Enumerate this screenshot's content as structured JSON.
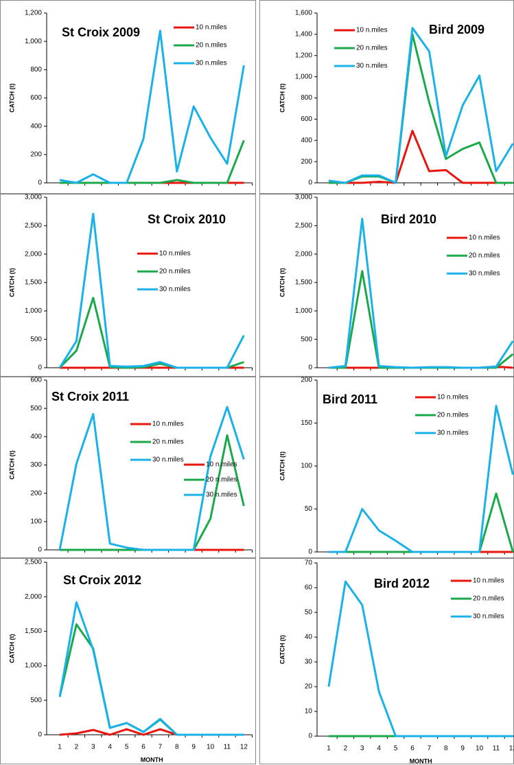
{
  "chart_data": [
    {
      "type": "line",
      "title": "St Croix 2009",
      "ylabel": "CATCH (t)",
      "categories": [
        null,
        null,
        null,
        null,
        null,
        null,
        null,
        null,
        null,
        null,
        null,
        null
      ],
      "ylim": [
        0,
        1200
      ],
      "yticks": [
        0,
        200,
        400,
        600,
        800,
        {
          "value": 1000,
          "label": "1,000"
        },
        {
          "value": 1200,
          "label": "1,200"
        }
      ],
      "series": [
        {
          "name": "10 n.miles",
          "color": "#e8150e",
          "values": [
            0,
            0,
            0,
            0,
            0,
            0,
            0,
            0,
            0,
            0,
            0,
            0
          ]
        },
        {
          "name": "20 n.miles",
          "color": "#1aa84a",
          "values": [
            0,
            0,
            0,
            0,
            0,
            0,
            0,
            20,
            0,
            0,
            0,
            300
          ]
        },
        {
          "name": "30 n.miles",
          "color": "#1ab0e8",
          "values": [
            20,
            0,
            60,
            0,
            0,
            310,
            1075,
            80,
            540,
            320,
            135,
            830
          ]
        }
      ]
    },
    {
      "type": "line",
      "title": "Bird 2009",
      "ylabel": "CATCH (t)",
      "categories": [
        null,
        null,
        null,
        null,
        null,
        null,
        null,
        null,
        null,
        null,
        null,
        null
      ],
      "ylim": [
        0,
        1600
      ],
      "yticks": [
        0,
        200,
        400,
        600,
        800,
        {
          "value": 1000,
          "label": "1,000"
        },
        {
          "value": 1200,
          "label": "1,200"
        },
        {
          "value": 1400,
          "label": "1,400"
        },
        {
          "value": 1600,
          "label": "1,600"
        }
      ],
      "series": [
        {
          "name": "10 n.miles",
          "color": "#e8150e",
          "values": [
            0,
            0,
            0,
            10,
            0,
            490,
            110,
            120,
            0,
            0,
            0,
            0
          ]
        },
        {
          "name": "20 n.miles",
          "color": "#1aa84a",
          "values": [
            0,
            0,
            60,
            60,
            0,
            1400,
            760,
            225,
            320,
            380,
            0,
            0
          ]
        },
        {
          "name": "30 n.miles",
          "color": "#1ab0e8",
          "values": [
            20,
            0,
            70,
            70,
            0,
            1460,
            1240,
            250,
            730,
            1010,
            110,
            370
          ]
        }
      ]
    },
    {
      "type": "line",
      "title": "St Croix 2010",
      "ylabel": "CATCH (t)",
      "categories": [
        null,
        null,
        null,
        null,
        null,
        null,
        null,
        null,
        null,
        null,
        null,
        null
      ],
      "ylim": [
        0,
        3000
      ],
      "yticks": [
        0,
        500,
        {
          "value": 1000,
          "label": "1,000"
        },
        {
          "value": 1500,
          "label": "1,500"
        },
        {
          "value": 2000,
          "label": "2,000"
        },
        {
          "value": 2500,
          "label": "2,500"
        },
        {
          "value": 3000,
          "label": "3,000"
        }
      ],
      "series": [
        {
          "name": "10 n.miles",
          "color": "#e8150e",
          "values": [
            0,
            0,
            0,
            0,
            0,
            0,
            0,
            0,
            0,
            0,
            0,
            0
          ]
        },
        {
          "name": "20 n.miles",
          "color": "#1aa84a",
          "values": [
            0,
            300,
            1230,
            10,
            0,
            10,
            70,
            0,
            0,
            0,
            0,
            100
          ]
        },
        {
          "name": "30 n.miles",
          "color": "#1ab0e8",
          "values": [
            0,
            470,
            2710,
            30,
            20,
            30,
            100,
            0,
            0,
            0,
            0,
            570
          ]
        }
      ]
    },
    {
      "type": "line",
      "title": "Bird 2010",
      "ylabel": "CATCH (t)",
      "categories": [
        null,
        null,
        null,
        null,
        null,
        null,
        null,
        null,
        null,
        null,
        null,
        null
      ],
      "ylim": [
        0,
        3000
      ],
      "yticks": [
        0,
        500,
        {
          "value": 1000,
          "label": "1,000"
        },
        {
          "value": 1500,
          "label": "1,500"
        },
        {
          "value": 2000,
          "label": "2,000"
        },
        {
          "value": 2500,
          "label": "2,500"
        },
        {
          "value": 3000,
          "label": "3,000"
        }
      ],
      "series": [
        {
          "name": "10 n.miles",
          "color": "#e8150e",
          "values": [
            0,
            0,
            0,
            0,
            0,
            0,
            0,
            0,
            0,
            0,
            20,
            0
          ]
        },
        {
          "name": "20 n.miles",
          "color": "#1aa84a",
          "values": [
            0,
            0,
            1700,
            0,
            0,
            0,
            0,
            0,
            0,
            0,
            0,
            240
          ]
        },
        {
          "name": "30 n.miles",
          "color": "#1ab0e8",
          "values": [
            0,
            30,
            2620,
            30,
            10,
            0,
            10,
            10,
            0,
            0,
            20,
            470
          ]
        }
      ]
    },
    {
      "type": "line",
      "title": "St Croix 2011",
      "ylabel": "CATCH (t)",
      "categories": [
        null,
        null,
        null,
        null,
        null,
        null,
        null,
        null,
        null,
        null,
        null,
        null
      ],
      "ylim": [
        0,
        600
      ],
      "yticks": [
        0,
        100,
        200,
        300,
        400,
        500,
        600
      ],
      "series": [
        {
          "name": "10 n.miles",
          "color": "#e8150e",
          "values": [
            0,
            0,
            0,
            0,
            0,
            0,
            0,
            0,
            0,
            0,
            0,
            0
          ]
        },
        {
          "name": "20 n.miles",
          "color": "#1aa84a",
          "values": [
            0,
            0,
            0,
            0,
            0,
            0,
            0,
            0,
            0,
            110,
            405,
            155
          ]
        },
        {
          "name": "30 n.miles",
          "color": "#1ab0e8",
          "values": [
            0,
            305,
            480,
            22,
            8,
            0,
            0,
            0,
            0,
            330,
            505,
            320
          ]
        }
      ]
    },
    {
      "type": "line",
      "title": "Bird 2011",
      "ylabel": "CATCH (t)",
      "categories": [
        null,
        null,
        null,
        null,
        null,
        null,
        null,
        null,
        null,
        null,
        null,
        null
      ],
      "ylim": [
        0,
        200
      ],
      "yticks": [
        0,
        50,
        100,
        150,
        200
      ],
      "series": [
        {
          "name": "10 n.miles",
          "color": "#e8150e",
          "values": [
            0,
            0,
            0,
            0,
            0,
            0,
            0,
            0,
            0,
            0,
            0,
            0
          ]
        },
        {
          "name": "20 n.miles",
          "color": "#1aa84a",
          "values": [
            0,
            0,
            0,
            0,
            0,
            0,
            0,
            0,
            0,
            0,
            68,
            0
          ]
        },
        {
          "name": "30 n.miles",
          "color": "#1ab0e8",
          "values": [
            0,
            0,
            50,
            25,
            13,
            0,
            0,
            0,
            0,
            0,
            170,
            90
          ]
        }
      ]
    },
    {
      "type": "line",
      "title": "St Croix 2012",
      "ylabel": "CATCH (t)",
      "xlabel": "MONTH",
      "categories": [
        "1",
        "2",
        "3",
        "4",
        "5",
        "6",
        "7",
        "8",
        "9",
        "10",
        "11",
        "12"
      ],
      "ylim": [
        0,
        2500
      ],
      "yticks": [
        0,
        500,
        {
          "value": 1000,
          "label": "1,000"
        },
        {
          "value": 1500,
          "label": "1,500"
        },
        {
          "value": 2000,
          "label": "2,000"
        },
        {
          "value": 2500,
          "label": "2,500"
        }
      ],
      "series": [
        {
          "name": "10 n.miles",
          "color": "#e8150e",
          "values": [
            0,
            20,
            70,
            0,
            80,
            0,
            80,
            0,
            0,
            0,
            0,
            0
          ]
        },
        {
          "name": "20 n.miles",
          "color": "#1aa84a",
          "values": [
            550,
            1600,
            1250,
            100,
            170,
            40,
            220,
            0,
            0,
            0,
            0,
            0
          ]
        },
        {
          "name": "30 n.miles",
          "color": "#1ab0e8",
          "values": [
            550,
            1920,
            1230,
            100,
            170,
            40,
            230,
            0,
            0,
            0,
            0,
            0
          ]
        }
      ]
    },
    {
      "type": "line",
      "title": "Bird 2012",
      "ylabel": "CATCH (t)",
      "xlabel": "MONTH",
      "categories": [
        "1",
        "2",
        "3",
        "4",
        "5",
        "6",
        "7",
        "8",
        "9",
        "10",
        "11",
        "12"
      ],
      "ylim": [
        0,
        70
      ],
      "yticks": [
        0,
        10,
        20,
        30,
        40,
        50,
        60,
        70
      ],
      "series": [
        {
          "name": "10 n.miles",
          "color": "#e8150e",
          "values": [
            0,
            0,
            0,
            0,
            0,
            0,
            0,
            0,
            0,
            0,
            0,
            0
          ]
        },
        {
          "name": "20 n.miles",
          "color": "#1aa84a",
          "values": [
            0,
            0,
            0,
            0,
            0,
            0,
            0,
            0,
            0,
            0,
            0,
            0
          ]
        },
        {
          "name": "30 n.miles",
          "color": "#1ab0e8",
          "values": [
            20,
            62.5,
            53,
            18,
            0,
            0,
            0,
            0,
            0,
            0,
            0,
            0
          ]
        }
      ]
    }
  ]
}
